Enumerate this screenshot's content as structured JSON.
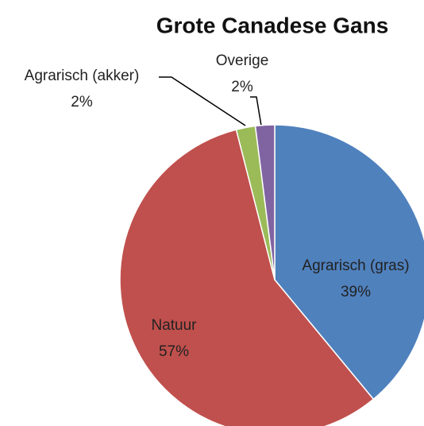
{
  "chart_data": {
    "type": "pie",
    "title": "Grote Canadese Gans",
    "categories": [
      "Agrarisch (gras)",
      "Natuur",
      "Agrarisch (akker)",
      "Overige"
    ],
    "values": [
      39,
      57,
      2,
      2
    ],
    "value_labels": [
      "39%",
      "57%",
      "2%",
      "2%"
    ],
    "colors": [
      "#4f81bd",
      "#c0504d",
      "#9bbb59",
      "#8064a2"
    ]
  }
}
